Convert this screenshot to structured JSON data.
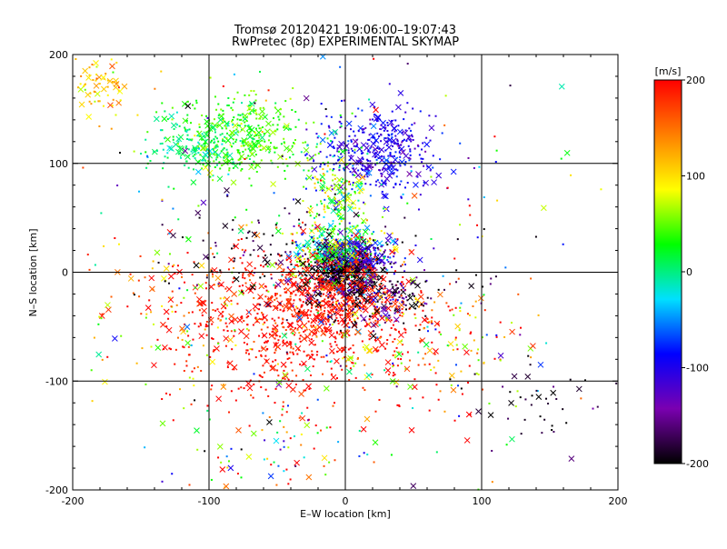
{
  "chart_data": {
    "type": "scatter",
    "title": "Tromsø 20120421 19:06:00–19:07:43",
    "subtitle": "RwPretec (8p) EXPERIMENTAL SKYMAP",
    "xlabel": "E–W location [km]",
    "ylabel": "N–S location [km]",
    "xlim": [
      -200,
      200
    ],
    "ylim": [
      -200,
      200
    ],
    "x_ticks": [
      "-200",
      "-100",
      "0",
      "100",
      "200"
    ],
    "y_ticks": [
      "-200",
      "-100",
      "0",
      "100",
      "200"
    ],
    "grid": true,
    "markers": [
      "dot",
      "x"
    ],
    "colorbar": {
      "label": "[m/s]",
      "range": [
        -200,
        200
      ],
      "ticks": [
        "200",
        "100",
        "0",
        "-100",
        "-200"
      ],
      "colormap": [
        "#000000",
        "#7a00b0",
        "#0000ff",
        "#00e0ff",
        "#00ff00",
        "#ffff00",
        "#ff7f00",
        "#ff0000"
      ]
    },
    "clusters": [
      {
        "x": 0,
        "y": 5,
        "sx": 12,
        "sy": 10,
        "n": 500,
        "v": -200,
        "sv": 25
      },
      {
        "x": -10,
        "y": 20,
        "sx": 15,
        "sy": 10,
        "n": 250,
        "v": 20,
        "sv": 60
      },
      {
        "x": 10,
        "y": 15,
        "sx": 12,
        "sy": 8,
        "n": 200,
        "v": -110,
        "sv": 30
      },
      {
        "x": -15,
        "y": -20,
        "sx": 30,
        "sy": 20,
        "n": 500,
        "v": 190,
        "sv": 20
      },
      {
        "x": -40,
        "y": -60,
        "sx": 45,
        "sy": 35,
        "n": 450,
        "v": 195,
        "sv": 15
      },
      {
        "x": 20,
        "y": -20,
        "sx": 25,
        "sy": 15,
        "n": 250,
        "v": -160,
        "sv": 40
      },
      {
        "x": 25,
        "y": 110,
        "sx": 22,
        "sy": 20,
        "n": 400,
        "v": -100,
        "sv": 20
      },
      {
        "x": -75,
        "y": 125,
        "sx": 25,
        "sy": 18,
        "n": 350,
        "v": 40,
        "sv": 20
      },
      {
        "x": -110,
        "y": 115,
        "sx": 18,
        "sy": 15,
        "n": 150,
        "v": 0,
        "sv": 20
      },
      {
        "x": -180,
        "y": 170,
        "sx": 12,
        "sy": 15,
        "n": 70,
        "v": 110,
        "sv": 30
      },
      {
        "x": -5,
        "y": 60,
        "sx": 15,
        "sy": 30,
        "n": 250,
        "v": 40,
        "sv": 40
      },
      {
        "x": -100,
        "y": -30,
        "sx": 45,
        "sy": 35,
        "n": 200,
        "v": 150,
        "sv": 70
      },
      {
        "x": 50,
        "y": -60,
        "sx": 40,
        "sy": 35,
        "n": 200,
        "v": 150,
        "sv": 80
      },
      {
        "x": 0,
        "y": 0,
        "sx": 110,
        "sy": 110,
        "n": 300,
        "v": 0,
        "sv": 150
      },
      {
        "x": 140,
        "y": -120,
        "sx": 25,
        "sy": 20,
        "n": 40,
        "v": -190,
        "sv": 20
      },
      {
        "x": -60,
        "y": -160,
        "sx": 40,
        "sy": 25,
        "n": 80,
        "v": 60,
        "sv": 120
      },
      {
        "x": -50,
        "y": 20,
        "sx": 40,
        "sy": 20,
        "n": 100,
        "v": -190,
        "sv": 20
      }
    ]
  }
}
